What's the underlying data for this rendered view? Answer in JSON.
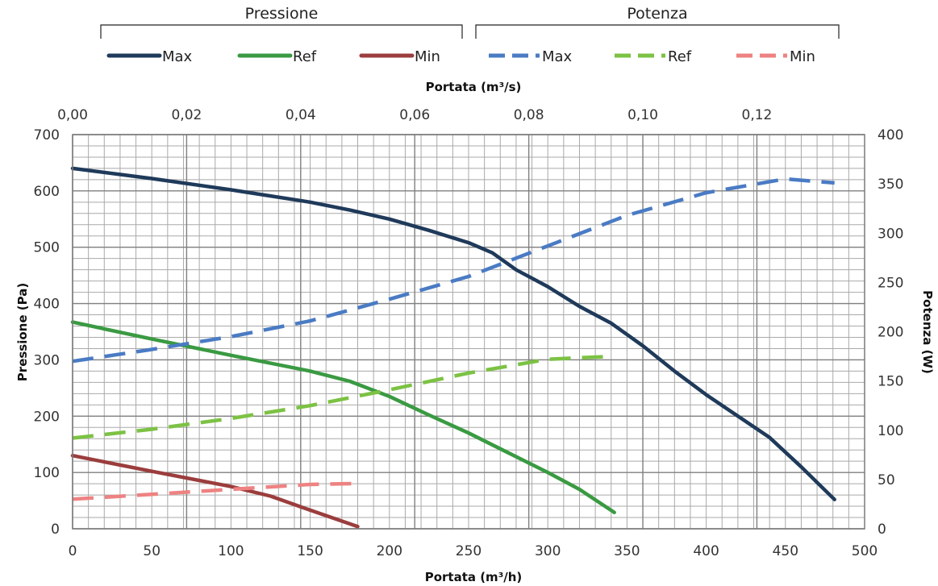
{
  "chart_data": {
    "type": "line",
    "legend": {
      "groups": [
        {
          "title": "Pressione",
          "entries": [
            {
              "label": "Max",
              "color": "#1f3a5a",
              "dash": false
            },
            {
              "label": "Ref",
              "color": "#3a9a42",
              "dash": false
            },
            {
              "label": "Min",
              "color": "#9b3d3d",
              "dash": false
            }
          ]
        },
        {
          "title": "Potenza",
          "entries": [
            {
              "label": "Max",
              "color": "#4a7bc4",
              "dash": true
            },
            {
              "label": "Ref",
              "color": "#7cc244",
              "dash": true
            },
            {
              "label": "Min",
              "color": "#ee8282",
              "dash": true
            }
          ]
        }
      ]
    },
    "x_bottom": {
      "label": "Portata (m³/h)",
      "range": [
        0,
        500
      ],
      "ticks": [
        "0",
        "50",
        "100",
        "150",
        "200",
        "250",
        "300",
        "350",
        "400",
        "450",
        "500"
      ],
      "tick_values": [
        0,
        50,
        100,
        150,
        200,
        250,
        300,
        350,
        400,
        450,
        500
      ]
    },
    "x_top": {
      "label": "Portata (m³/s)",
      "range": [
        0,
        0.13889
      ],
      "ticks": [
        "0,00",
        "0,02",
        "0,04",
        "0,06",
        "0,08",
        "0,10",
        "0,12"
      ],
      "tick_values": [
        0,
        0.02,
        0.04,
        0.06,
        0.08,
        0.1,
        0.12
      ]
    },
    "y_left": {
      "label": "Pressione (Pa)",
      "range": [
        0,
        700
      ],
      "ticks": [
        "0",
        "100",
        "200",
        "300",
        "400",
        "500",
        "600",
        "700"
      ],
      "tick_values": [
        0,
        100,
        200,
        300,
        400,
        500,
        600,
        700
      ]
    },
    "y_right": {
      "label": "Potenza (W)",
      "range": [
        0,
        400
      ],
      "ticks": [
        "0",
        "50",
        "100",
        "150",
        "200",
        "250",
        "300",
        "350",
        "400"
      ],
      "tick_values": [
        0,
        50,
        100,
        150,
        200,
        250,
        300,
        350,
        400
      ]
    },
    "grid": {
      "x_minor_step": 10,
      "y_minor_step": 20
    },
    "series": [
      {
        "name": "Max",
        "group": "Pressione",
        "axis": "left",
        "color": "#1f3a5a",
        "dash": false,
        "points": [
          [
            0,
            640
          ],
          [
            50,
            622
          ],
          [
            100,
            602
          ],
          [
            150,
            580
          ],
          [
            175,
            566
          ],
          [
            200,
            550
          ],
          [
            225,
            530
          ],
          [
            250,
            508
          ],
          [
            265,
            490
          ],
          [
            280,
            460
          ],
          [
            300,
            430
          ],
          [
            320,
            395
          ],
          [
            340,
            365
          ],
          [
            360,
            325
          ],
          [
            380,
            280
          ],
          [
            400,
            238
          ],
          [
            420,
            200
          ],
          [
            440,
            162
          ],
          [
            460,
            110
          ],
          [
            481,
            52
          ]
        ]
      },
      {
        "name": "Ref",
        "group": "Pressione",
        "axis": "left",
        "color": "#3a9a42",
        "dash": false,
        "points": [
          [
            0,
            367
          ],
          [
            50,
            337
          ],
          [
            100,
            308
          ],
          [
            150,
            280
          ],
          [
            175,
            262
          ],
          [
            200,
            235
          ],
          [
            225,
            202
          ],
          [
            250,
            170
          ],
          [
            275,
            135
          ],
          [
            300,
            100
          ],
          [
            320,
            70
          ],
          [
            342,
            29
          ]
        ]
      },
      {
        "name": "Min",
        "group": "Pressione",
        "axis": "left",
        "color": "#9b3d3d",
        "dash": false,
        "points": [
          [
            0,
            130
          ],
          [
            50,
            102
          ],
          [
            100,
            75
          ],
          [
            125,
            58
          ],
          [
            150,
            33
          ],
          [
            180,
            4
          ]
        ]
      },
      {
        "name": "Max",
        "group": "Potenza",
        "axis": "right",
        "color": "#4a7bc4",
        "dash": true,
        "points": [
          [
            0,
            170
          ],
          [
            50,
            182
          ],
          [
            100,
            195
          ],
          [
            150,
            211
          ],
          [
            200,
            233
          ],
          [
            250,
            256
          ],
          [
            300,
            287
          ],
          [
            350,
            318
          ],
          [
            400,
            341
          ],
          [
            450,
            355
          ],
          [
            481,
            351
          ]
        ]
      },
      {
        "name": "Ref",
        "group": "Potenza",
        "axis": "right",
        "color": "#7cc244",
        "dash": true,
        "points": [
          [
            0,
            92
          ],
          [
            50,
            101
          ],
          [
            100,
            112
          ],
          [
            150,
            125
          ],
          [
            200,
            141
          ],
          [
            250,
            158
          ],
          [
            300,
            172
          ],
          [
            340,
            175
          ]
        ]
      },
      {
        "name": "Min",
        "group": "Potenza",
        "axis": "right",
        "color": "#ee8282",
        "dash": true,
        "points": [
          [
            0,
            30
          ],
          [
            50,
            35
          ],
          [
            100,
            40
          ],
          [
            150,
            45
          ],
          [
            180,
            46
          ]
        ]
      }
    ]
  }
}
